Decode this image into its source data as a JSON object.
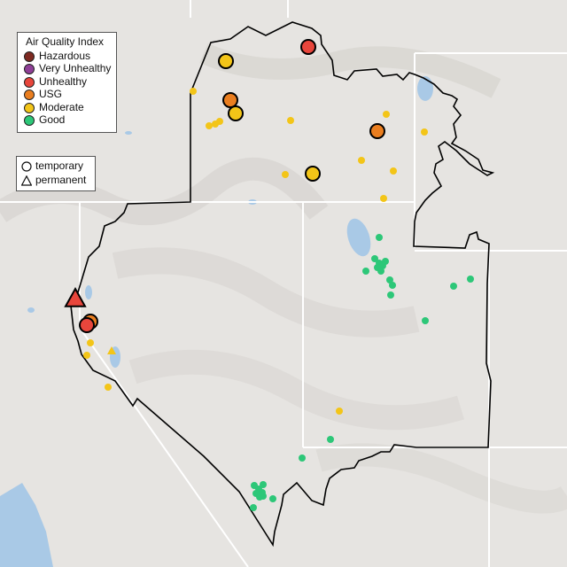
{
  "legend": {
    "title": "Air Quality Index",
    "categories": [
      {
        "key": "hazardous",
        "label": "Hazardous",
        "color": "#7e2a22"
      },
      {
        "key": "very_unhealthy",
        "label": "Very Unhealthy",
        "color": "#8f3f97"
      },
      {
        "key": "unhealthy",
        "label": "Unhealthy",
        "color": "#e8463c"
      },
      {
        "key": "usg",
        "label": "USG",
        "color": "#ea7e1f"
      },
      {
        "key": "moderate",
        "label": "Moderate",
        "color": "#f3c518"
      },
      {
        "key": "good",
        "label": "Good",
        "color": "#2dc778"
      }
    ]
  },
  "monitor_types": {
    "temporary": {
      "label": "temporary",
      "symbol": "circle"
    },
    "permanent": {
      "label": "permanent",
      "symbol": "triangle"
    }
  },
  "colors": {
    "land": "#e6e4e1",
    "water": "#a9c9e6",
    "boundary": "#000000",
    "state_lines": "#ffffff"
  }
}
